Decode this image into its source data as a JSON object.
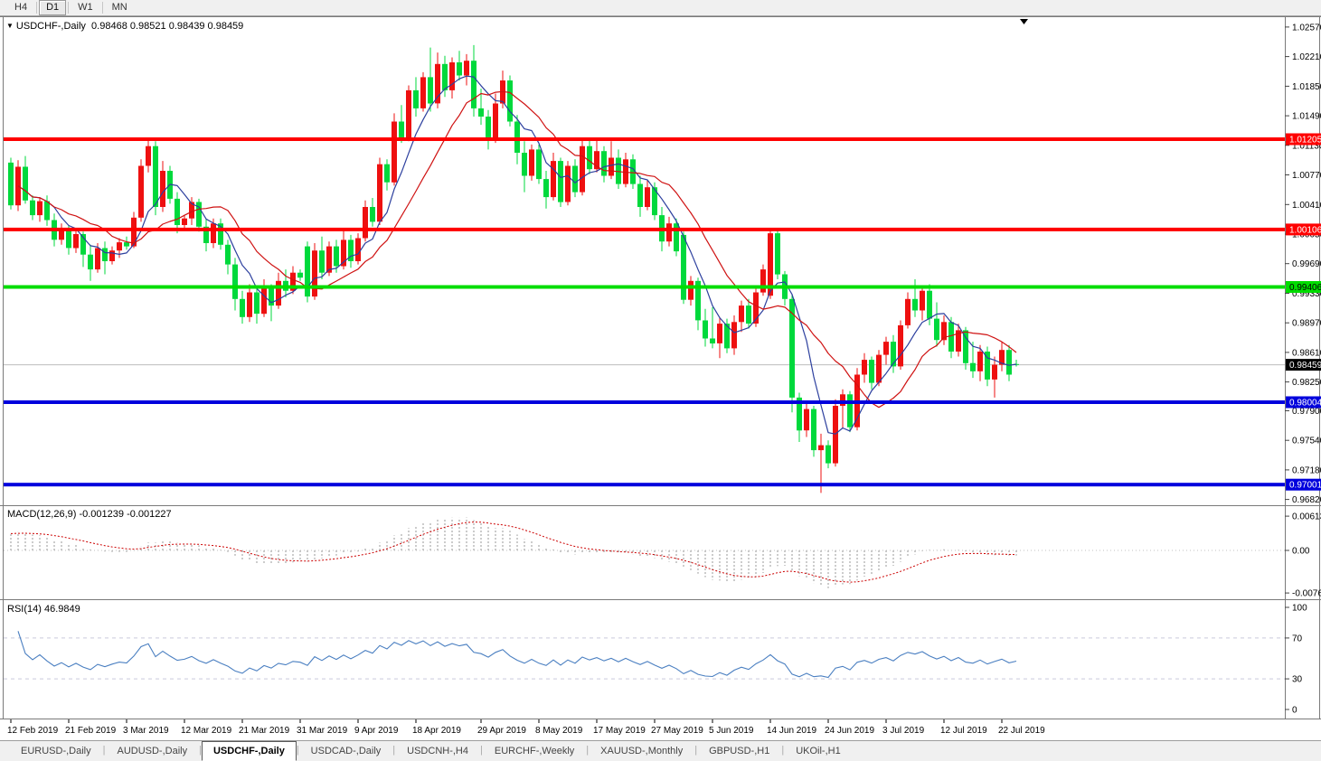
{
  "toolbar": {
    "buttons": [
      "H4",
      "D1",
      "W1",
      "MN"
    ],
    "active": "D1"
  },
  "chart": {
    "symbol_label": "USDCHF-,Daily",
    "ohlc": {
      "open": "0.98468",
      "high": "0.98521",
      "low": "0.98439",
      "close": "0.98459"
    }
  },
  "price_axis": {
    "ticks": [
      "1.02570",
      "1.02210",
      "1.01850",
      "1.01490",
      "1.01130",
      "1.00770",
      "1.00410",
      "1.00050",
      "0.99690",
      "0.99330",
      "0.98970",
      "0.98610",
      "0.98250",
      "0.97900",
      "0.97540",
      "0.97180",
      "0.96820"
    ],
    "current_price": "0.98459"
  },
  "hlines": [
    {
      "price": 1.01205,
      "label": "1.01205",
      "color": "#ff0000",
      "text_color": "#ffffff"
    },
    {
      "price": 1.00106,
      "label": "1.00106",
      "color": "#ff0000",
      "text_color": "#ffffff"
    },
    {
      "price": 0.99406,
      "label": "0.99406",
      "color": "#00dd00",
      "text_color": "#000000"
    },
    {
      "price": 0.98004,
      "label": "0.98004",
      "color": "#0000dd",
      "text_color": "#ffffff"
    },
    {
      "price": 0.97001,
      "label": "0.97001",
      "color": "#0000dd",
      "text_color": "#ffffff"
    }
  ],
  "chart_data": {
    "type": "candlestick",
    "symbol": "USDCHF",
    "timeframe": "Daily",
    "title": "USDCHF-,Daily  O 0.98468  H 0.98521  L 0.98439  C 0.98459",
    "x_labels": [
      {
        "text": "12 Feb 2019",
        "bar": 0
      },
      {
        "text": "21 Feb 2019",
        "bar": 8
      },
      {
        "text": "3 Mar 2019",
        "bar": 16
      },
      {
        "text": "12 Mar 2019",
        "bar": 24
      },
      {
        "text": "21 Mar 2019",
        "bar": 32
      },
      {
        "text": "31 Mar 2019",
        "bar": 40
      },
      {
        "text": "9 Apr 2019",
        "bar": 48
      },
      {
        "text": "18 Apr 2019",
        "bar": 56
      },
      {
        "text": "29 Apr 2019",
        "bar": 65
      },
      {
        "text": "8 May 2019",
        "bar": 73
      },
      {
        "text": "17 May 2019",
        "bar": 81
      },
      {
        "text": "27 May 2019",
        "bar": 89
      },
      {
        "text": "5 Jun 2019",
        "bar": 97
      },
      {
        "text": "14 Jun 2019",
        "bar": 105
      },
      {
        "text": "24 Jun 2019",
        "bar": 113
      },
      {
        "text": "3 Jul 2019",
        "bar": 121
      },
      {
        "text": "12 Jul 2019",
        "bar": 129
      },
      {
        "text": "22 Jul 2019",
        "bar": 137
      }
    ],
    "ylim": [
      0.967,
      1.027
    ],
    "candles": [
      [
        1.0092,
        1.0098,
        1.0035,
        1.004
      ],
      [
        1.004,
        1.0095,
        1.0033,
        1.0087
      ],
      [
        1.0087,
        1.01,
        1.0042,
        1.0046
      ],
      [
        1.0046,
        1.0052,
        1.0022,
        1.0028
      ],
      [
        1.0028,
        1.005,
        1.002,
        1.0045
      ],
      [
        1.0045,
        1.0052,
        1.0015,
        1.0022
      ],
      [
        1.0022,
        1.003,
        0.999,
        0.9998
      ],
      [
        0.9998,
        1.0018,
        0.9992,
        1.0012
      ],
      [
        1.0012,
        1.0016,
        0.998,
        0.9988
      ],
      [
        0.9988,
        1.001,
        0.9982,
        1.0005
      ],
      [
        1.0005,
        1.0008,
        0.9965,
        0.998
      ],
      [
        0.998,
        0.9992,
        0.9948,
        0.9962
      ],
      [
        0.9962,
        0.9994,
        0.9958,
        0.9988
      ],
      [
        0.9988,
        0.9996,
        0.9956,
        0.9972
      ],
      [
        0.9972,
        0.999,
        0.9968,
        0.9985
      ],
      [
        0.9985,
        1.0,
        0.9976,
        0.9995
      ],
      [
        0.9995,
        1.0002,
        0.9986,
        0.999
      ],
      [
        0.999,
        1.0032,
        0.9988,
        1.0025
      ],
      [
        1.0025,
        1.0096,
        1.002,
        1.0088
      ],
      [
        1.0088,
        1.0121,
        1.008,
        1.0112
      ],
      [
        1.0112,
        1.0118,
        1.0028,
        1.0038
      ],
      [
        1.0038,
        1.0094,
        1.0032,
        1.0082
      ],
      [
        1.0082,
        1.0088,
        1.0042,
        1.0048
      ],
      [
        1.0048,
        1.0056,
        1.0006,
        1.0016
      ],
      [
        1.0016,
        1.0028,
        1.001,
        1.0024
      ],
      [
        1.0024,
        1.005,
        1.0016,
        1.0044
      ],
      [
        1.0044,
        1.0048,
        1.0008,
        1.0014
      ],
      [
        1.0014,
        1.0024,
        0.9984,
        0.9994
      ],
      [
        0.9994,
        1.0024,
        0.9988,
        1.0018
      ],
      [
        1.0018,
        1.0024,
        0.9986,
        0.9992
      ],
      [
        0.9992,
        0.9998,
        0.9956,
        0.9968
      ],
      [
        0.9968,
        0.9976,
        0.9912,
        0.9926
      ],
      [
        0.9926,
        0.9936,
        0.9896,
        0.9904
      ],
      [
        0.9904,
        0.9944,
        0.9898,
        0.9934
      ],
      [
        0.9934,
        0.994,
        0.9896,
        0.9908
      ],
      [
        0.9908,
        0.995,
        0.9904,
        0.994
      ],
      [
        0.994,
        0.9944,
        0.9899,
        0.9918
      ],
      [
        0.9918,
        0.9958,
        0.9914,
        0.9948
      ],
      [
        0.9948,
        0.9962,
        0.9928,
        0.9936
      ],
      [
        0.9936,
        0.9966,
        0.9932,
        0.9958
      ],
      [
        0.9958,
        0.9962,
        0.9948,
        0.9952
      ],
      [
        0.999,
        0.9996,
        0.9922,
        0.9929
      ],
      [
        0.9929,
        0.9994,
        0.9925,
        0.9985
      ],
      [
        0.9985,
        1.0002,
        0.995,
        0.9958
      ],
      [
        0.9958,
        0.9996,
        0.9954,
        0.999
      ],
      [
        0.999,
        0.9998,
        0.9958,
        0.9966
      ],
      [
        0.9966,
        1.001,
        0.9962,
        0.9998
      ],
      [
        0.9998,
        1.0004,
        0.9964,
        0.9972
      ],
      [
        0.9972,
        1.0006,
        0.9968,
        1.0
      ],
      [
        1.0,
        1.0046,
        0.9996,
        1.0038
      ],
      [
        1.0038,
        1.0049,
        1.0014,
        1.002
      ],
      [
        1.002,
        1.0098,
        1.0016,
        1.009
      ],
      [
        1.009,
        1.0096,
        1.0058,
        1.0068
      ],
      [
        1.0068,
        1.0152,
        1.0064,
        1.0142
      ],
      [
        1.0142,
        1.0162,
        1.0116,
        1.0122
      ],
      [
        1.0122,
        1.0186,
        1.0118,
        1.018
      ],
      [
        1.018,
        1.0196,
        1.0148,
        1.0158
      ],
      [
        1.0158,
        1.0202,
        1.0154,
        1.0196
      ],
      [
        1.0196,
        1.0232,
        1.0154,
        1.0164
      ],
      [
        1.0164,
        1.0226,
        1.0158,
        1.0212
      ],
      [
        1.0212,
        1.0222,
        1.0172,
        1.018
      ],
      [
        1.018,
        1.022,
        1.017,
        1.0214
      ],
      [
        1.0214,
        1.0228,
        1.0192,
        1.0198
      ],
      [
        1.0198,
        1.0224,
        1.0186,
        1.0216
      ],
      [
        1.0216,
        1.0235,
        1.0148,
        1.0158
      ],
      [
        1.0158,
        1.0182,
        1.0138,
        1.0148
      ],
      [
        1.0148,
        1.0156,
        1.0108,
        1.012
      ],
      [
        1.012,
        1.0176,
        1.0116,
        1.0164
      ],
      [
        1.0164,
        1.0204,
        1.0158,
        1.0192
      ],
      [
        1.0192,
        1.0198,
        1.0136,
        1.0142
      ],
      [
        1.0142,
        1.015,
        1.009,
        1.0104
      ],
      [
        1.0104,
        1.0118,
        1.0056,
        1.0076
      ],
      [
        1.0076,
        1.0114,
        1.007,
        1.0108
      ],
      [
        1.0108,
        1.0114,
        1.0066,
        1.0072
      ],
      [
        1.0072,
        1.0082,
        1.0036,
        1.005
      ],
      [
        1.005,
        1.0104,
        1.0046,
        1.0094
      ],
      [
        1.0094,
        1.0098,
        1.0038,
        1.0044
      ],
      [
        1.0044,
        1.0094,
        1.004,
        1.0088
      ],
      [
        1.0088,
        1.0096,
        1.005,
        1.0056
      ],
      [
        1.0056,
        1.0122,
        1.0052,
        1.0112
      ],
      [
        1.0112,
        1.012,
        1.0078,
        1.0084
      ],
      [
        1.0084,
        1.012,
        1.008,
        1.0106
      ],
      [
        1.0106,
        1.0112,
        1.0068,
        1.0076
      ],
      [
        1.0076,
        1.0118,
        1.0072,
        1.0098
      ],
      [
        1.0098,
        1.0108,
        1.006,
        1.0066
      ],
      [
        1.0066,
        1.0104,
        1.0062,
        1.0096
      ],
      [
        1.0096,
        1.0102,
        1.006,
        1.0066
      ],
      [
        1.0066,
        1.0076,
        1.0026,
        1.0038
      ],
      [
        1.0038,
        1.007,
        1.0034,
        1.0062
      ],
      [
        1.0062,
        1.0068,
        1.0022,
        1.0028
      ],
      [
        1.0028,
        1.0038,
        0.9984,
        0.9996
      ],
      [
        0.9996,
        1.0026,
        0.999,
        1.0018
      ],
      [
        1.0018,
        1.0024,
        0.9978,
        0.9984
      ],
      [
        1.0004,
        1.0008,
        0.992,
        0.9925
      ],
      [
        0.9925,
        0.9954,
        0.9918,
        0.9948
      ],
      [
        0.9948,
        0.9952,
        0.9888,
        0.99
      ],
      [
        0.99,
        0.9914,
        0.9868,
        0.9878
      ],
      [
        0.9878,
        0.9916,
        0.9866,
        0.9872
      ],
      [
        0.9872,
        0.9904,
        0.9854,
        0.9896
      ],
      [
        0.9896,
        0.9902,
        0.986,
        0.9866
      ],
      [
        0.9866,
        0.9906,
        0.9858,
        0.9898
      ],
      [
        0.9898,
        0.9924,
        0.9886,
        0.9918
      ],
      [
        0.9918,
        0.9926,
        0.989,
        0.9896
      ],
      [
        0.9896,
        0.994,
        0.9892,
        0.9934
      ],
      [
        0.9934,
        0.9968,
        0.993,
        0.9962
      ],
      [
        0.993,
        1.001,
        0.9926,
        1.0006
      ],
      [
        1.0006,
        1.0012,
        0.995,
        0.9956
      ],
      [
        0.9956,
        0.996,
        0.9918,
        0.9926
      ],
      [
        0.9926,
        0.9932,
        0.9788,
        0.9806
      ],
      [
        0.9806,
        0.9812,
        0.9752,
        0.9766
      ],
      [
        0.9766,
        0.9802,
        0.9758,
        0.9792
      ],
      [
        0.9792,
        0.9796,
        0.9734,
        0.9742
      ],
      [
        0.9742,
        0.9762,
        0.969,
        0.9748
      ],
      [
        0.9748,
        0.9754,
        0.972,
        0.9726
      ],
      [
        0.9726,
        0.9804,
        0.9722,
        0.9796
      ],
      [
        0.9796,
        0.9816,
        0.9768,
        0.981
      ],
      [
        0.981,
        0.9814,
        0.9764,
        0.977
      ],
      [
        0.977,
        0.9842,
        0.9766,
        0.9834
      ],
      [
        0.9834,
        0.986,
        0.9824,
        0.9852
      ],
      [
        0.9852,
        0.9856,
        0.9816,
        0.9824
      ],
      [
        0.9824,
        0.9864,
        0.982,
        0.9858
      ],
      [
        0.9858,
        0.988,
        0.9846,
        0.9874
      ],
      [
        0.9874,
        0.9882,
        0.9836,
        0.9844
      ],
      [
        0.9844,
        0.99,
        0.984,
        0.9894
      ],
      [
        0.9894,
        0.9934,
        0.989,
        0.9926
      ],
      [
        0.9926,
        0.995,
        0.9904,
        0.9912
      ],
      [
        0.9912,
        0.9942,
        0.99,
        0.9936
      ],
      [
        0.9936,
        0.9944,
        0.9894,
        0.9902
      ],
      [
        0.9902,
        0.9922,
        0.9868,
        0.9876
      ],
      [
        0.9876,
        0.9906,
        0.987,
        0.9898
      ],
      [
        0.9898,
        0.9904,
        0.9854,
        0.9862
      ],
      [
        0.9862,
        0.9896,
        0.9856,
        0.9888
      ],
      [
        0.9888,
        0.9892,
        0.984,
        0.9848
      ],
      [
        0.9848,
        0.9874,
        0.983,
        0.9838
      ],
      [
        0.9838,
        0.987,
        0.9826,
        0.9862
      ],
      [
        0.9862,
        0.9868,
        0.982,
        0.9828
      ],
      [
        0.9828,
        0.9856,
        0.9806,
        0.9846
      ],
      [
        0.9846,
        0.9874,
        0.9838,
        0.9864
      ],
      [
        0.9864,
        0.987,
        0.9826,
        0.9834
      ],
      [
        0.98468,
        0.98521,
        0.98439,
        0.98459
      ]
    ],
    "overlays": [
      {
        "name": "ma-fast",
        "type": "sma",
        "period": 6,
        "color": "#2c3f9e"
      },
      {
        "name": "ma-slow",
        "type": "sma",
        "period": 13,
        "color": "#cf1212"
      }
    ],
    "indicators": [
      {
        "name": "MACD",
        "label": "MACD(12,26,9) -0.001239 -0.001227",
        "params": [
          12,
          26,
          9
        ],
        "values": [
          "-0.001239",
          "-0.001227"
        ],
        "axis": [
          "0.00613",
          "0.00",
          "-0.007612"
        ]
      },
      {
        "name": "RSI",
        "label": "RSI(14) 46.9849",
        "period": 14,
        "value": "46.9849",
        "axis": [
          "100",
          "70",
          "30",
          "0"
        ],
        "levels": [
          70,
          30
        ]
      }
    ]
  },
  "tabs": {
    "items": [
      "EURUSD-,Daily",
      "AUDUSD-,Daily",
      "USDCHF-,Daily",
      "USDCAD-,Daily",
      "USDCNH-,H4",
      "EURCHF-,Weekly",
      "XAUUSD-,Monthly",
      "GBPUSD-,H1",
      "UKOil-,H1"
    ],
    "active_index": 2
  },
  "colors": {
    "bull": "#ee1010",
    "bear": "#00d93c",
    "ma_fast": "#2c3f9e",
    "ma_slow": "#cf1212",
    "macd_hist": "#9a9a9a",
    "macd_signal": "#cc0000",
    "rsi_line": "#4a7fc1",
    "level_dash": "#c9c9dc",
    "price_line": "#bdbdbd",
    "current_label_bg": "#000000",
    "panel_border": "#7a7a7a",
    "axis_text": "#000000"
  }
}
